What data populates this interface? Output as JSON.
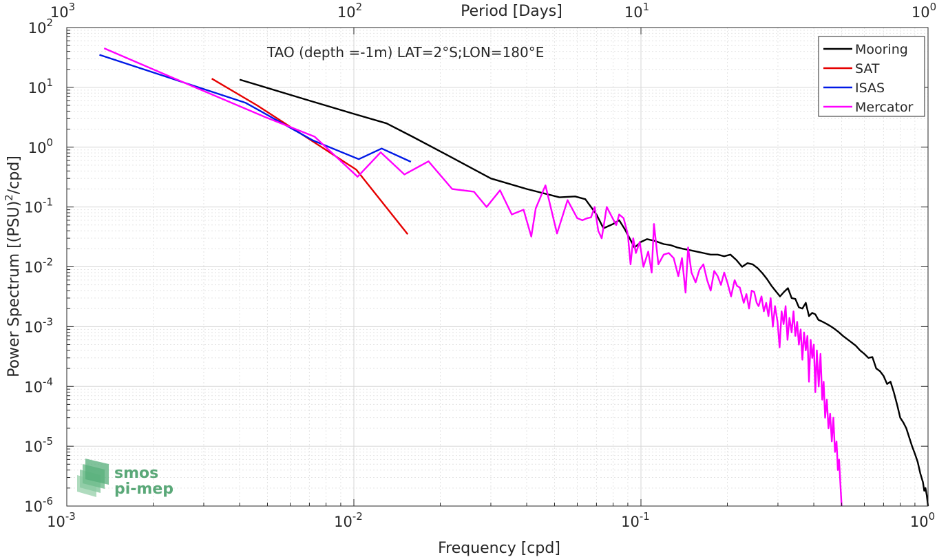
{
  "chart_data": {
    "type": "line",
    "title": "",
    "annotation": "TAO (depth =-1m) LAT=2°S;LON=180°E",
    "xlabel": "Frequency [cpd]",
    "ylabel_prefix": "Power Spectrum [(PSU)",
    "ylabel_sup": "2",
    "ylabel_suffix": "/cpd]",
    "top_xlabel": "Period [Days]",
    "xscale": "log",
    "yscale": "log",
    "xlim": [
      0.001,
      1
    ],
    "ylim": [
      1e-06,
      100
    ],
    "grid": true,
    "legend_position": "top-right",
    "x_ticks": [
      {
        "base": "10",
        "exp": "-3",
        "value": 0.001
      },
      {
        "base": "10",
        "exp": "-2",
        "value": 0.01
      },
      {
        "base": "10",
        "exp": "-1",
        "value": 0.1
      },
      {
        "base": "10",
        "exp": "0",
        "value": 1
      }
    ],
    "y_ticks": [
      {
        "base": "10",
        "exp": "2",
        "value": 100
      },
      {
        "base": "10",
        "exp": "1",
        "value": 10
      },
      {
        "base": "10",
        "exp": "0",
        "value": 1
      },
      {
        "base": "10",
        "exp": "-1",
        "value": 0.1
      },
      {
        "base": "10",
        "exp": "-2",
        "value": 0.01
      },
      {
        "base": "10",
        "exp": "-3",
        "value": 0.001
      },
      {
        "base": "10",
        "exp": "-4",
        "value": 0.0001
      },
      {
        "base": "10",
        "exp": "-5",
        "value": 1e-05
      },
      {
        "base": "10",
        "exp": "-6",
        "value": 1e-06
      }
    ],
    "top_ticks": [
      {
        "base": "10",
        "exp": "3",
        "value": 0.001
      },
      {
        "base": "10",
        "exp": "2",
        "value": 0.01
      },
      {
        "base": "10",
        "exp": "1",
        "value": 0.1
      },
      {
        "base": "10",
        "exp": "0",
        "value": 1
      }
    ],
    "series": [
      {
        "name": "Mooring",
        "color": "#000000",
        "points": [
          [
            0.004,
            13.5
          ],
          [
            0.007,
            6.0
          ],
          [
            0.01,
            3.6
          ],
          [
            0.013,
            2.5
          ],
          [
            0.016,
            1.5
          ],
          [
            0.021,
            0.75
          ],
          [
            0.03,
            0.3
          ],
          [
            0.04,
            0.2
          ],
          [
            0.052,
            0.145
          ],
          [
            0.059,
            0.15
          ],
          [
            0.064,
            0.135
          ],
          [
            0.07,
            0.075
          ],
          [
            0.074,
            0.044
          ],
          [
            0.08,
            0.052
          ],
          [
            0.084,
            0.06
          ],
          [
            0.088,
            0.042
          ],
          [
            0.095,
            0.021
          ],
          [
            0.1,
            0.026
          ],
          [
            0.105,
            0.029
          ],
          [
            0.112,
            0.027
          ],
          [
            0.12,
            0.024
          ],
          [
            0.127,
            0.023
          ],
          [
            0.134,
            0.021
          ],
          [
            0.14,
            0.02
          ],
          [
            0.148,
            0.019
          ],
          [
            0.156,
            0.018
          ],
          [
            0.165,
            0.017
          ],
          [
            0.175,
            0.016
          ],
          [
            0.185,
            0.016
          ],
          [
            0.195,
            0.015
          ],
          [
            0.205,
            0.016
          ],
          [
            0.215,
            0.013
          ],
          [
            0.225,
            0.01
          ],
          [
            0.235,
            0.0115
          ],
          [
            0.245,
            0.011
          ],
          [
            0.255,
            0.0095
          ],
          [
            0.265,
            0.0078
          ],
          [
            0.275,
            0.0062
          ],
          [
            0.285,
            0.0048
          ],
          [
            0.295,
            0.0039
          ],
          [
            0.305,
            0.0032
          ],
          [
            0.315,
            0.0038
          ],
          [
            0.325,
            0.0044
          ],
          [
            0.335,
            0.003
          ],
          [
            0.345,
            0.0029
          ],
          [
            0.355,
            0.0021
          ],
          [
            0.365,
            0.002
          ],
          [
            0.375,
            0.0025
          ],
          [
            0.385,
            0.0015
          ],
          [
            0.395,
            0.0017
          ],
          [
            0.405,
            0.0016
          ],
          [
            0.415,
            0.0013
          ],
          [
            0.43,
            0.0012
          ],
          [
            0.445,
            0.0011
          ],
          [
            0.46,
            0.001
          ],
          [
            0.475,
            0.0009
          ],
          [
            0.49,
            0.0008
          ],
          [
            0.505,
            0.0007
          ],
          [
            0.52,
            0.00063
          ],
          [
            0.54,
            0.00055
          ],
          [
            0.56,
            0.00048
          ],
          [
            0.58,
            0.0004
          ],
          [
            0.6,
            0.00035
          ],
          [
            0.62,
            0.0003
          ],
          [
            0.64,
            0.00031
          ],
          [
            0.66,
            0.0002
          ],
          [
            0.68,
            0.00018
          ],
          [
            0.7,
            0.00015
          ],
          [
            0.72,
            0.00011
          ],
          [
            0.74,
            0.00012
          ],
          [
            0.76,
            8e-05
          ],
          [
            0.78,
            5e-05
          ],
          [
            0.8,
            3e-05
          ],
          [
            0.82,
            2.5e-05
          ],
          [
            0.84,
            2e-05
          ],
          [
            0.86,
            1.4e-05
          ],
          [
            0.88,
            1e-05
          ],
          [
            0.9,
            7.5e-06
          ],
          [
            0.92,
            5.5e-06
          ],
          [
            0.94,
            3.5e-06
          ],
          [
            0.96,
            2.5e-06
          ],
          [
            0.97,
            1.8e-06
          ],
          [
            0.98,
            2e-06
          ],
          [
            0.99,
            1.5e-06
          ],
          [
            1.0,
            1e-06
          ]
        ]
      },
      {
        "name": "SAT",
        "color": "#e60000",
        "points": [
          [
            0.0032,
            14.0
          ],
          [
            0.0046,
            5.0
          ],
          [
            0.0075,
            1.1
          ],
          [
            0.0102,
            0.42
          ],
          [
            0.0154,
            0.035
          ]
        ]
      },
      {
        "name": "ISAS",
        "color": "#0019e6",
        "points": [
          [
            0.0013,
            35.0
          ],
          [
            0.0042,
            5.5
          ],
          [
            0.0072,
            1.3
          ],
          [
            0.0104,
            0.63
          ],
          [
            0.0125,
            0.95
          ],
          [
            0.0158,
            0.57
          ]
        ]
      },
      {
        "name": "Mercator",
        "color": "#ff00ff",
        "points": [
          [
            0.00135,
            45.0
          ],
          [
            0.0028,
            10.0
          ],
          [
            0.0049,
            3.2
          ],
          [
            0.0073,
            1.5
          ],
          [
            0.0103,
            0.32
          ],
          [
            0.0124,
            0.82
          ],
          [
            0.015,
            0.35
          ],
          [
            0.0182,
            0.58
          ],
          [
            0.022,
            0.2
          ],
          [
            0.0262,
            0.18
          ],
          [
            0.029,
            0.1
          ],
          [
            0.0323,
            0.19
          ],
          [
            0.0355,
            0.075
          ],
          [
            0.039,
            0.09
          ],
          [
            0.0415,
            0.032
          ],
          [
            0.043,
            0.095
          ],
          [
            0.0465,
            0.23
          ],
          [
            0.051,
            0.036
          ],
          [
            0.0555,
            0.13
          ],
          [
            0.06,
            0.065
          ],
          [
            0.0625,
            0.06
          ],
          [
            0.065,
            0.065
          ],
          [
            0.067,
            0.067
          ],
          [
            0.069,
            0.1
          ],
          [
            0.071,
            0.04
          ],
          [
            0.073,
            0.03
          ],
          [
            0.076,
            0.1
          ],
          [
            0.079,
            0.07
          ],
          [
            0.082,
            0.05
          ],
          [
            0.084,
            0.075
          ],
          [
            0.087,
            0.065
          ],
          [
            0.09,
            0.035
          ],
          [
            0.092,
            0.011
          ],
          [
            0.094,
            0.03
          ],
          [
            0.096,
            0.017
          ],
          [
            0.099,
            0.026
          ],
          [
            0.102,
            0.01
          ],
          [
            0.106,
            0.018
          ],
          [
            0.109,
            0.008
          ],
          [
            0.111,
            0.052
          ],
          [
            0.115,
            0.011
          ],
          [
            0.12,
            0.016
          ],
          [
            0.125,
            0.017
          ],
          [
            0.13,
            0.014
          ],
          [
            0.135,
            0.007
          ],
          [
            0.139,
            0.014
          ],
          [
            0.143,
            0.0037
          ],
          [
            0.146,
            0.021
          ],
          [
            0.15,
            0.008
          ],
          [
            0.155,
            0.0055
          ],
          [
            0.16,
            0.009
          ],
          [
            0.165,
            0.011
          ],
          [
            0.17,
            0.006
          ],
          [
            0.175,
            0.004
          ],
          [
            0.18,
            0.0085
          ],
          [
            0.185,
            0.007
          ],
          [
            0.19,
            0.005
          ],
          [
            0.195,
            0.008
          ],
          [
            0.2,
            0.0055
          ],
          [
            0.206,
            0.0032
          ],
          [
            0.212,
            0.006
          ],
          [
            0.216,
            0.0048
          ],
          [
            0.221,
            0.0045
          ],
          [
            0.228,
            0.0025
          ],
          [
            0.233,
            0.0035
          ],
          [
            0.238,
            0.002
          ],
          [
            0.243,
            0.004
          ],
          [
            0.248,
            0.0038
          ],
          [
            0.253,
            0.0025
          ],
          [
            0.257,
            0.0022
          ],
          [
            0.263,
            0.0032
          ],
          [
            0.268,
            0.0018
          ],
          [
            0.273,
            0.0025
          ],
          [
            0.278,
            0.0015
          ],
          [
            0.283,
            0.003
          ],
          [
            0.288,
            0.001
          ],
          [
            0.293,
            0.0022
          ],
          [
            0.299,
            0.0012
          ],
          [
            0.304,
            0.00045
          ],
          [
            0.309,
            0.0018
          ],
          [
            0.314,
            0.0011
          ],
          [
            0.319,
            0.0022
          ],
          [
            0.324,
            0.0006
          ],
          [
            0.329,
            0.0014
          ],
          [
            0.335,
            0.0008
          ],
          [
            0.34,
            0.0018
          ],
          [
            0.345,
            0.0007
          ],
          [
            0.35,
            0.0012
          ],
          [
            0.355,
            0.0005
          ],
          [
            0.36,
            0.0009
          ],
          [
            0.365,
            0.00028
          ],
          [
            0.37,
            0.0008
          ],
          [
            0.375,
            0.0004
          ],
          [
            0.38,
            0.0007
          ],
          [
            0.385,
            0.00012
          ],
          [
            0.39,
            0.0006
          ],
          [
            0.395,
            0.0003
          ],
          [
            0.4,
            0.0005
          ],
          [
            0.405,
            8e-05
          ],
          [
            0.41,
            0.0004
          ],
          [
            0.416,
            0.0001
          ],
          [
            0.422,
            0.00035
          ],
          [
            0.428,
            6e-05
          ],
          [
            0.433,
            0.00012
          ],
          [
            0.438,
            3e-05
          ],
          [
            0.444,
            6e-05
          ],
          [
            0.45,
            2e-05
          ],
          [
            0.456,
            3.5e-05
          ],
          [
            0.462,
            1.2e-05
          ],
          [
            0.468,
            3e-05
          ],
          [
            0.474,
            8e-06
          ],
          [
            0.48,
            1.2e-05
          ],
          [
            0.485,
            4e-06
          ],
          [
            0.49,
            6e-06
          ],
          [
            0.496,
            2e-06
          ],
          [
            0.5,
            1e-06
          ]
        ]
      }
    ]
  },
  "watermark": {
    "line1": "smos",
    "line2": "pi-mep",
    "color": "#4aa36d"
  }
}
